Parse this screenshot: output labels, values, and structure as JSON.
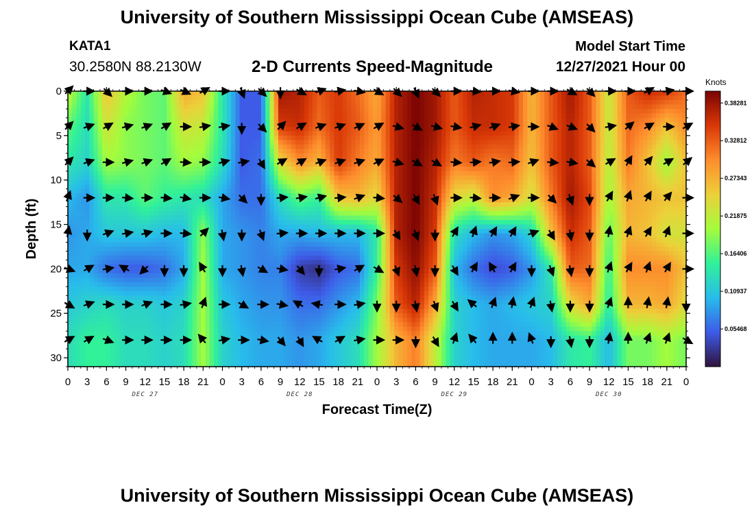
{
  "header": {
    "title": "University of Southern Mississippi Ocean Cube (AMSEAS)",
    "station": "KATA1",
    "coordinates": "30.2580N  88.2130W",
    "chart_heading": "2-D Currents Speed-Magnitude",
    "model_start_label": "Model Start Time",
    "model_start_value": "12/27/2021 Hour 00"
  },
  "footer": {
    "title": "University of Southern Mississippi Ocean Cube (AMSEAS)"
  },
  "colors": {
    "background": "#ffffff",
    "arrow": "#000000",
    "colormap": [
      "#30123b",
      "#3e5be8",
      "#28bceb",
      "#31f199",
      "#a4fc3c",
      "#ecd03a",
      "#fe8d2d",
      "#d93807",
      "#7a0403"
    ]
  },
  "chart_data": {
    "type": "heatmap",
    "title": "2-D Currents Speed-Magnitude",
    "xlabel": "Forecast Time(Z)",
    "ylabel": "Depth (ft)",
    "x_ticks": [
      "0",
      "3",
      "6",
      "9",
      "12",
      "15",
      "18",
      "21",
      "0",
      "3",
      "6",
      "9",
      "12",
      "15",
      "18",
      "21",
      "0",
      "3",
      "6",
      "9",
      "12",
      "15",
      "18",
      "21",
      "0",
      "3",
      "6",
      "9",
      "12",
      "15",
      "18",
      "21",
      "0"
    ],
    "x_range_hours": [
      0,
      96
    ],
    "date_labels": [
      {
        "label": "DEC 27",
        "hour": 12
      },
      {
        "label": "DEC 28",
        "hour": 36
      },
      {
        "label": "DEC 29",
        "hour": 60
      },
      {
        "label": "DEC 30",
        "hour": 84
      }
    ],
    "y_ticks": [
      0,
      5,
      10,
      15,
      20,
      25,
      30
    ],
    "ylim": [
      0,
      31
    ],
    "depths_ft": [
      0,
      4,
      8,
      12,
      16,
      20,
      24,
      28
    ],
    "hours": [
      0,
      3,
      6,
      9,
      12,
      15,
      18,
      21,
      24,
      27,
      30,
      33,
      36,
      39,
      42,
      45,
      48,
      51,
      54,
      57,
      60,
      63,
      66,
      69,
      72,
      75,
      78,
      81,
      84,
      87,
      90,
      93,
      96
    ],
    "speed_knots": [
      [
        0.22,
        0.14,
        0.26,
        0.21,
        0.18,
        0.17,
        0.28,
        0.26,
        0.14,
        0.05,
        0.05,
        0.38,
        0.37,
        0.33,
        0.35,
        0.32,
        0.28,
        0.37,
        0.4,
        0.38,
        0.33,
        0.37,
        0.36,
        0.35,
        0.27,
        0.33,
        0.38,
        0.33,
        0.22,
        0.33,
        0.36,
        0.35,
        0.32
      ],
      [
        0.17,
        0.13,
        0.23,
        0.19,
        0.18,
        0.17,
        0.23,
        0.22,
        0.14,
        0.05,
        0.05,
        0.35,
        0.36,
        0.32,
        0.35,
        0.33,
        0.29,
        0.37,
        0.4,
        0.38,
        0.33,
        0.36,
        0.36,
        0.35,
        0.27,
        0.33,
        0.37,
        0.33,
        0.22,
        0.32,
        0.3,
        0.26,
        0.3
      ],
      [
        0.14,
        0.12,
        0.2,
        0.19,
        0.18,
        0.17,
        0.2,
        0.19,
        0.13,
        0.05,
        0.06,
        0.24,
        0.3,
        0.27,
        0.35,
        0.31,
        0.28,
        0.37,
        0.4,
        0.37,
        0.31,
        0.33,
        0.31,
        0.32,
        0.26,
        0.33,
        0.37,
        0.33,
        0.21,
        0.31,
        0.26,
        0.2,
        0.26
      ],
      [
        0.1,
        0.08,
        0.14,
        0.14,
        0.17,
        0.15,
        0.14,
        0.13,
        0.09,
        0.06,
        0.06,
        0.13,
        0.17,
        0.15,
        0.26,
        0.27,
        0.24,
        0.37,
        0.4,
        0.36,
        0.24,
        0.22,
        0.3,
        0.28,
        0.23,
        0.31,
        0.38,
        0.34,
        0.2,
        0.28,
        0.27,
        0.26,
        0.26
      ],
      [
        0.08,
        0.09,
        0.11,
        0.11,
        0.11,
        0.1,
        0.1,
        0.19,
        0.09,
        0.08,
        0.07,
        0.09,
        0.09,
        0.1,
        0.1,
        0.1,
        0.14,
        0.37,
        0.4,
        0.35,
        0.13,
        0.1,
        0.08,
        0.09,
        0.12,
        0.26,
        0.36,
        0.33,
        0.17,
        0.27,
        0.26,
        0.23,
        0.23
      ],
      [
        0.09,
        0.09,
        0.06,
        0.05,
        0.05,
        0.06,
        0.09,
        0.2,
        0.09,
        0.08,
        0.07,
        0.07,
        0.03,
        0.02,
        0.05,
        0.06,
        0.15,
        0.35,
        0.39,
        0.33,
        0.1,
        0.06,
        0.04,
        0.05,
        0.08,
        0.14,
        0.33,
        0.32,
        0.15,
        0.3,
        0.3,
        0.3,
        0.26
      ],
      [
        0.11,
        0.12,
        0.13,
        0.12,
        0.12,
        0.11,
        0.12,
        0.2,
        0.11,
        0.09,
        0.08,
        0.08,
        0.06,
        0.06,
        0.08,
        0.1,
        0.18,
        0.33,
        0.37,
        0.28,
        0.12,
        0.1,
        0.09,
        0.1,
        0.11,
        0.12,
        0.24,
        0.28,
        0.14,
        0.27,
        0.27,
        0.28,
        0.24
      ],
      [
        0.13,
        0.15,
        0.15,
        0.13,
        0.13,
        0.12,
        0.13,
        0.2,
        0.12,
        0.1,
        0.09,
        0.09,
        0.08,
        0.09,
        0.11,
        0.13,
        0.2,
        0.27,
        0.31,
        0.22,
        0.12,
        0.1,
        0.09,
        0.09,
        0.09,
        0.1,
        0.14,
        0.15,
        0.1,
        0.18,
        0.18,
        0.2,
        0.18
      ]
    ],
    "arrow_direction_deg_cw_from_up": [
      [
        45,
        90,
        135,
        90,
        90,
        110,
        115,
        60,
        90,
        160,
        135,
        180,
        120,
        70,
        80,
        100,
        120,
        135,
        155,
        135,
        90,
        95,
        90,
        100,
        90,
        90,
        120,
        135,
        90,
        90,
        60,
        80,
        90
      ],
      [
        45,
        70,
        60,
        75,
        70,
        60,
        90,
        80,
        80,
        180,
        135,
        45,
        60,
        70,
        70,
        65,
        60,
        105,
        120,
        105,
        100,
        75,
        70,
        80,
        90,
        110,
        110,
        135,
        80,
        50,
        60,
        90,
        60
      ],
      [
        45,
        70,
        90,
        75,
        70,
        60,
        95,
        90,
        75,
        80,
        150,
        60,
        60,
        70,
        70,
        70,
        65,
        105,
        120,
        120,
        95,
        85,
        80,
        85,
        70,
        95,
        100,
        130,
        60,
        30,
        40,
        60,
        50
      ],
      [
        20,
        90,
        90,
        95,
        90,
        95,
        100,
        90,
        100,
        135,
        180,
        85,
        80,
        75,
        85,
        70,
        95,
        130,
        150,
        160,
        90,
        95,
        90,
        70,
        90,
        135,
        160,
        180,
        30,
        20,
        30,
        40,
        90
      ],
      [
        10,
        180,
        70,
        80,
        75,
        90,
        95,
        45,
        170,
        180,
        160,
        85,
        90,
        90,
        90,
        90,
        90,
        150,
        160,
        180,
        30,
        20,
        30,
        30,
        70,
        150,
        170,
        180,
        10,
        20,
        30,
        20,
        90
      ],
      [
        110,
        60,
        80,
        300,
        225,
        180,
        180,
        330,
        180,
        170,
        120,
        100,
        140,
        180,
        80,
        60,
        120,
        160,
        170,
        180,
        150,
        30,
        330,
        30,
        180,
        160,
        170,
        180,
        20,
        30,
        20,
        30,
        90
      ],
      [
        120,
        70,
        90,
        90,
        70,
        90,
        80,
        20,
        90,
        120,
        90,
        100,
        300,
        280,
        90,
        80,
        180,
        180,
        170,
        160,
        150,
        310,
        20,
        10,
        20,
        170,
        180,
        180,
        20,
        0,
        10,
        10,
        180
      ],
      [
        60,
        60,
        110,
        90,
        90,
        90,
        90,
        320,
        80,
        90,
        100,
        140,
        150,
        300,
        60,
        80,
        90,
        90,
        180,
        150,
        20,
        320,
        0,
        0,
        340,
        180,
        170,
        180,
        10,
        0,
        20,
        20,
        120
      ]
    ],
    "colorbar": {
      "unit": "Knots",
      "range": [
        0,
        0.4
      ],
      "ticks": [
        "0.38281",
        "0.32812",
        "0.27343",
        "0.21875",
        "0.16406",
        "0.10937",
        "0.05468"
      ],
      "tick_values": [
        0.38281,
        0.32812,
        0.27343,
        0.21875,
        0.16406,
        0.10937,
        0.05468
      ]
    }
  }
}
